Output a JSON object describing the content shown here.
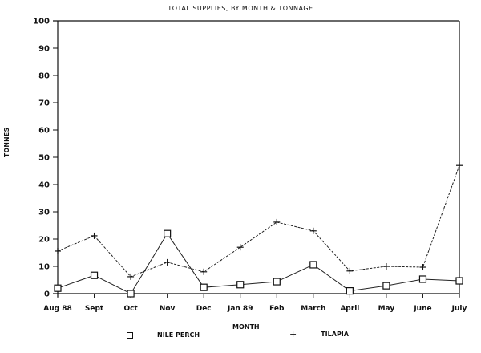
{
  "chart_data": {
    "type": "line",
    "title": "TOTAL SUPPLIES, BY MONTH & TONNAGE",
    "xlabel": "MONTH",
    "ylabel": "TONNES",
    "ylim": [
      0,
      100
    ],
    "yticks": [
      0,
      10,
      20,
      30,
      40,
      50,
      60,
      70,
      80,
      90,
      100
    ],
    "grid": false,
    "legend_position": "bottom",
    "categories": [
      "Aug 88",
      "Sept",
      "Oct",
      "Nov",
      "Dec",
      "Jan 89",
      "Feb",
      "March",
      "April",
      "May",
      "June",
      "July"
    ],
    "series": [
      {
        "name": "NILE PERCH",
        "marker": "square",
        "values": [
          2,
          6.7,
          0,
          22,
          2.3,
          3.3,
          4.4,
          10.6,
          1,
          2.9,
          5.3,
          4.7
        ]
      },
      {
        "name": "TILAPIA",
        "marker": "plus",
        "values": [
          15.6,
          21.2,
          6.2,
          11.5,
          8,
          17,
          26.2,
          23,
          8.3,
          10,
          9.7,
          47
        ]
      }
    ]
  },
  "legend": {
    "nile_perch": {
      "symbol": "□",
      "label": "NILE PERCH"
    },
    "tilapia": {
      "symbol": "+",
      "label": "TILAPIA"
    }
  }
}
